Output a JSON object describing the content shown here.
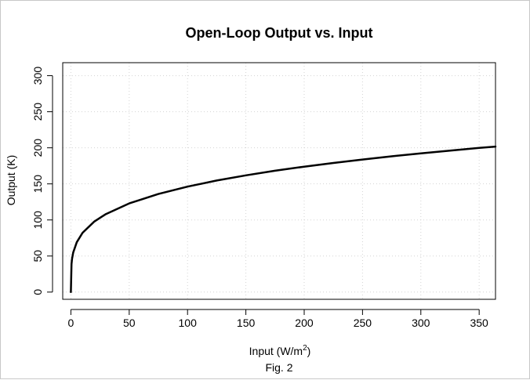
{
  "chart_data": {
    "type": "line",
    "title": "Open-Loop Output vs. Input",
    "xlabel": "Input (W/m",
    "xlabel_sup": "2",
    "xlabel_close": ")",
    "ylabel": "Output (K)",
    "caption": "Fig. 2",
    "xlim": [
      -7,
      364
    ],
    "ylim": [
      -10,
      318
    ],
    "x_ticks": [
      0,
      50,
      100,
      150,
      200,
      250,
      300,
      350
    ],
    "y_ticks": [
      0,
      50,
      100,
      150,
      200,
      250,
      300
    ],
    "grid": true,
    "series": [
      {
        "color": "#000000",
        "x": [
          0,
          0.5,
          1,
          2,
          5,
          10,
          20,
          30,
          50,
          75,
          100,
          125,
          150,
          175,
          200,
          225,
          250,
          275,
          300,
          325,
          350,
          364
        ],
        "y": [
          0,
          38.8,
          46.2,
          55.0,
          69.1,
          82.2,
          97.7,
          108.2,
          122.9,
          136.0,
          146.2,
          154.6,
          161.8,
          168.2,
          173.9,
          179.0,
          183.8,
          188.2,
          192.3,
          196.1,
          199.8,
          201.7
        ]
      }
    ]
  }
}
